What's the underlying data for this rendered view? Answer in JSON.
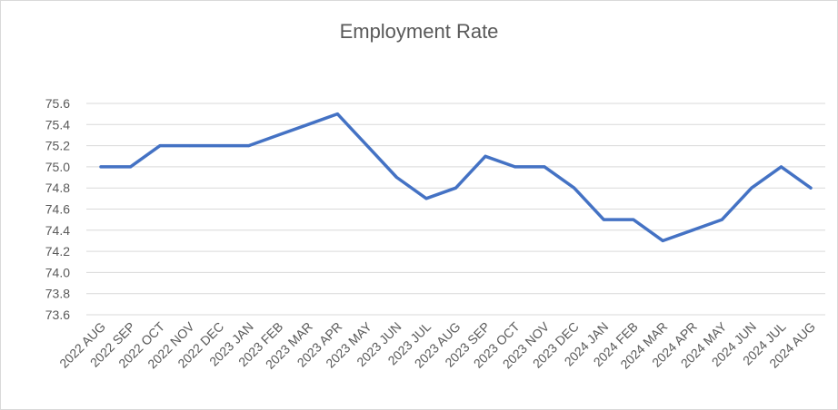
{
  "chart_data": {
    "type": "line",
    "title": "Employment Rate",
    "xlabel": "",
    "ylabel": "",
    "categories": [
      "2022 AUG",
      "2022 SEP",
      "2022 OCT",
      "2022 NOV",
      "2022 DEC",
      "2023 JAN",
      "2023 FEB",
      "2023 MAR",
      "2023 APR",
      "2023 MAY",
      "2023 JUN",
      "2023 JUL",
      "2023 AUG",
      "2023 SEP",
      "2023 OCT",
      "2023 NOV",
      "2023 DEC",
      "2024 JAN",
      "2024 FEB",
      "2024 MAR",
      "2024 APR",
      "2024 MAY",
      "2024 JUN",
      "2024 JUL",
      "2024 AUG"
    ],
    "series": [
      {
        "values": [
          75.0,
          75.0,
          75.2,
          75.2,
          75.2,
          75.2,
          75.3,
          75.4,
          75.5,
          75.2,
          74.9,
          74.7,
          74.8,
          75.1,
          75.0,
          75.0,
          74.8,
          74.5,
          74.5,
          74.3,
          74.4,
          74.5,
          74.8,
          75.0,
          74.8
        ]
      }
    ],
    "ylim": [
      73.6,
      75.6
    ],
    "yticks": [
      "73.6",
      "73.8",
      "74.0",
      "74.2",
      "74.4",
      "74.6",
      "74.8",
      "75.0",
      "75.2",
      "75.4",
      "75.6"
    ],
    "grid": true,
    "legend": "none",
    "line_color": "#4472c4",
    "grid_color": "#d9d9d9"
  }
}
